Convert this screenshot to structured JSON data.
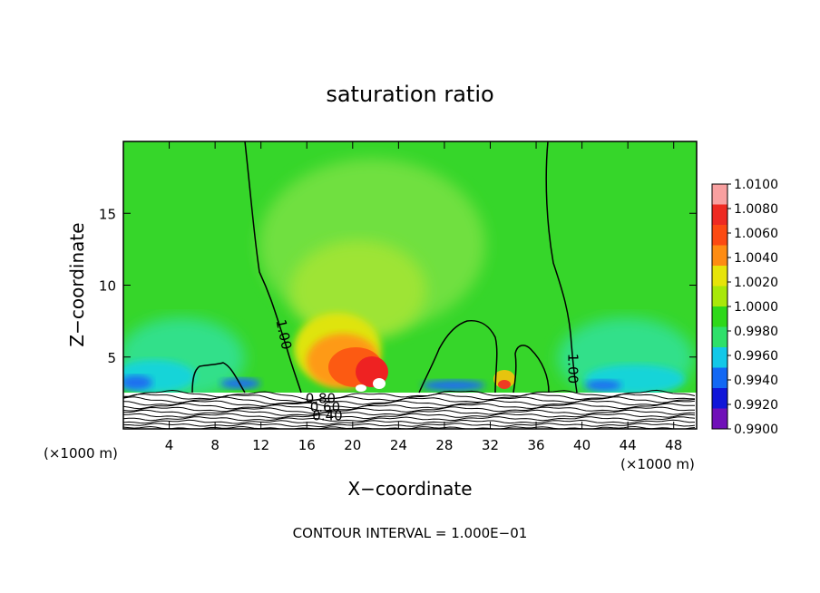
{
  "chart_data": {
    "type": "heatmap",
    "title": "saturation ratio",
    "xlabel": "X−coordinate",
    "ylabel": "Z−coordinate",
    "x_unit_left": "(×1000 m)",
    "x_unit_right": "(×1000 m)",
    "xlim": [
      0,
      50
    ],
    "ylim": [
      0,
      20
    ],
    "x_ticks": [
      4,
      8,
      12,
      16,
      20,
      24,
      28,
      32,
      36,
      40,
      44,
      48
    ],
    "y_ticks": [
      5,
      10,
      15
    ],
    "footer": "CONTOUR INTERVAL = 1.000E−01",
    "colorbar": {
      "labels": [
        "1.0100",
        "1.0080",
        "1.0060",
        "1.0040",
        "1.0020",
        "1.0000",
        "0.9980",
        "0.9960",
        "0.9940",
        "0.9920",
        "0.9900"
      ],
      "colors": [
        "#f8a0a0",
        "#ee2a22",
        "#fc4a12",
        "#fe8c12",
        "#e6e40a",
        "#a8e80a",
        "#2ed81a",
        "#2ee06a",
        "#12c8e8",
        "#1268f4",
        "#1016d8",
        "#7010b8"
      ]
    },
    "contour_labels": [
      {
        "text": "1.00",
        "x": 13.6,
        "z": 6.5,
        "angle": 78
      },
      {
        "text": "1.00",
        "x": 38.8,
        "z": 4.2,
        "angle": 90
      },
      {
        "text": "0.80",
        "x": 17.2,
        "z": 1.8,
        "angle": 0
      },
      {
        "text": "0.60",
        "x": 17.6,
        "z": 1.2,
        "angle": 0
      },
      {
        "text": "0.40",
        "x": 17.8,
        "z": 0.6,
        "angle": 0
      }
    ]
  }
}
